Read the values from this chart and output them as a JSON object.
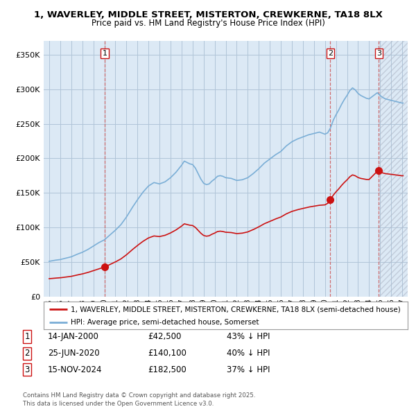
{
  "title_line1": "1, WAVERLEY, MIDDLE STREET, MISTERTON, CREWKERNE, TA18 8LX",
  "title_line2": "Price paid vs. HM Land Registry's House Price Index (HPI)",
  "background_color": "#ffffff",
  "chart_bg_color": "#dce9f5",
  "grid_color": "#b0c4d8",
  "hpi_color": "#7aaed6",
  "price_color": "#cc1111",
  "sale_marker_color": "#cc1111",
  "dashed_line_color": "#cc5555",
  "legend_house": "1, WAVERLEY, MIDDLE STREET, MISTERTON, CREWKERNE, TA18 8LX (semi-detached house)",
  "legend_hpi": "HPI: Average price, semi-detached house, Somerset",
  "footer": "Contains HM Land Registry data © Crown copyright and database right 2025.\nThis data is licensed under the Open Government Licence v3.0.",
  "sales": [
    {
      "num": 1,
      "date_label": "14-JAN-2000",
      "price_label": "£42,500",
      "hpi_label": "43% ↓ HPI",
      "year": 2000.04,
      "price": 42500
    },
    {
      "num": 2,
      "date_label": "25-JUN-2020",
      "price_label": "£140,100",
      "hpi_label": "40% ↓ HPI",
      "year": 2020.49,
      "price": 140100
    },
    {
      "num": 3,
      "date_label": "15-NOV-2024",
      "price_label": "£182,500",
      "hpi_label": "37% ↓ HPI",
      "year": 2024.88,
      "price": 182500
    }
  ],
  "ylim": [
    0,
    370000
  ],
  "xlim": [
    1994.5,
    2027.5
  ],
  "yticks": [
    0,
    50000,
    100000,
    150000,
    200000,
    250000,
    300000,
    350000
  ],
  "ytick_labels": [
    "£0",
    "£50K",
    "£100K",
    "£150K",
    "£200K",
    "£250K",
    "£300K",
    "£350K"
  ],
  "xticks": [
    1995,
    1996,
    1997,
    1998,
    1999,
    2000,
    2001,
    2002,
    2003,
    2004,
    2005,
    2006,
    2007,
    2008,
    2009,
    2010,
    2011,
    2012,
    2013,
    2014,
    2015,
    2016,
    2017,
    2018,
    2019,
    2020,
    2021,
    2022,
    2023,
    2024,
    2025,
    2026,
    2027
  ]
}
